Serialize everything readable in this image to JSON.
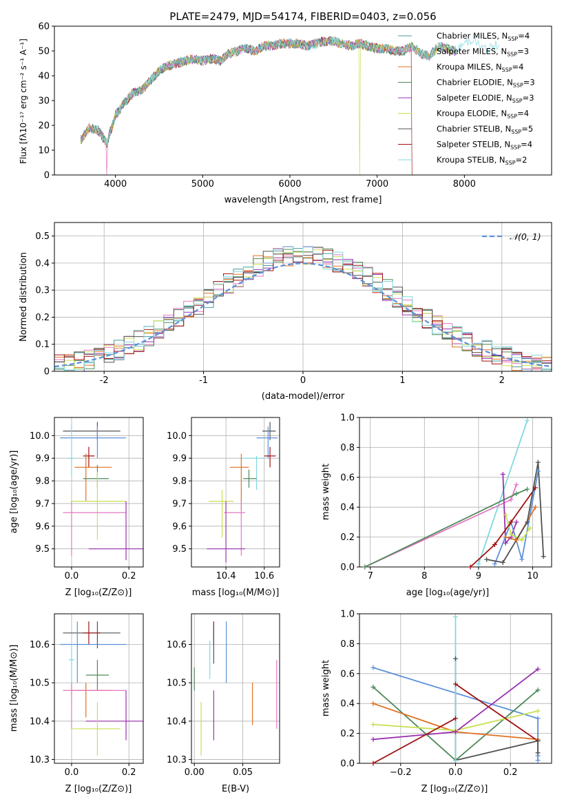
{
  "figure_title": "PLATE=2479, MJD=54174, FIBERID=0403, z=0.056",
  "chart_data": [
    {
      "id": "spectrum",
      "type": "line",
      "title": "PLATE=2479, MJD=54174, FIBERID=0403, z=0.056",
      "xlabel": "wavelength [Angstrom, rest frame]",
      "ylabel": "Flux [fλ10⁻¹⁷ erg cm⁻² s⁻¹ A⁻¹]",
      "xlim": [
        3300,
        9000
      ],
      "ylim": [
        0,
        60
      ],
      "xticks": [
        4000,
        5000,
        6000,
        7000,
        8000
      ],
      "yticks": [
        0,
        10,
        20,
        30,
        40,
        50,
        60
      ],
      "grid": false,
      "legend_position": "right",
      "x": [
        3600,
        3700,
        3800,
        3900,
        4000,
        4100,
        4200,
        4300,
        4400,
        4500,
        4600,
        4700,
        4800,
        4900,
        5000,
        5100,
        5200,
        5300,
        5400,
        5500,
        5600,
        5700,
        5800,
        5900,
        6000,
        6100,
        6200,
        6300,
        6400,
        6500,
        6600,
        6700,
        6800,
        6900,
        7000,
        7100,
        7200,
        7300,
        7400,
        7500,
        7600,
        7700,
        7800,
        7900,
        8000,
        8100,
        8200,
        8300,
        8400
      ],
      "flux": [
        14,
        19,
        18,
        13,
        24,
        29,
        33,
        34,
        38,
        42,
        44,
        45,
        46,
        47,
        46,
        47,
        46,
        49,
        50,
        51,
        50,
        52,
        52,
        53,
        53,
        53,
        52,
        53,
        54,
        54,
        53,
        52,
        53,
        52,
        51,
        51,
        50,
        50,
        52,
        49,
        48,
        52,
        51,
        50,
        53,
        55,
        51,
        51,
        53
      ],
      "series": [
        {
          "name": "Chabrier MILES, N",
          "sub": "SSP",
          "suffix": "=4",
          "color": "#4a9a9a"
        },
        {
          "name": "Salpeter MILES, N",
          "sub": "SSP",
          "suffix": "=3",
          "color": "#e377c2"
        },
        {
          "name": "Kroupa MILES, N",
          "sub": "SSP",
          "suffix": "=4",
          "color": "#e07020"
        },
        {
          "name": "Chabrier ELODIE, N",
          "sub": "SSP",
          "suffix": "=3",
          "color": "#4e8a5a"
        },
        {
          "name": "Salpeter ELODIE, N",
          "sub": "SSP",
          "suffix": "=3",
          "color": "#9a30b0"
        },
        {
          "name": "Kroupa ELODIE, N",
          "sub": "SSP",
          "suffix": "=4",
          "color": "#c8e050"
        },
        {
          "name": "Chabrier STELIB, N",
          "sub": "SSP",
          "suffix": "=5",
          "color": "#505050"
        },
        {
          "name": "Salpeter STELIB, N",
          "sub": "SSP",
          "suffix": "=4",
          "color": "#a01010"
        },
        {
          "name": "Kroupa STELIB, N",
          "sub": "SSP",
          "suffix": "=2",
          "color": "#80d8e0"
        }
      ]
    },
    {
      "id": "residuals",
      "type": "histogram",
      "xlabel": "(data-model)/error",
      "ylabel": "Normed distribution",
      "xlim": [
        -2.5,
        2.5
      ],
      "ylim": [
        0,
        0.55
      ],
      "xticks": [
        -2,
        -1,
        0,
        1,
        2
      ],
      "yticks": [
        0.0,
        0.1,
        0.2,
        0.3,
        0.4,
        0.5
      ],
      "grid": true,
      "legend_position": "top-right",
      "reference_label": "𝒩(0, 1)",
      "reference_color": "#5b8fd9",
      "bin_edges_range": [
        -2.5,
        2.5
      ],
      "n_bins": 50
    },
    {
      "id": "age_vs_Z",
      "type": "errorbar",
      "xlabel": "Z [log₁₀(Z/Z⊙)]",
      "ylabel": "age  [log₁₀(age/yr)]",
      "xlim": [
        -0.06,
        0.25
      ],
      "ylim": [
        9.42,
        10.08
      ],
      "xticks": [
        "0.0",
        "0.2"
      ],
      "yticks": [
        "9.5",
        "9.6",
        "9.7",
        "9.8",
        "9.9",
        "10.0"
      ],
      "points": [
        {
          "x": 0.09,
          "xlo": -0.03,
          "xhi": 0.17,
          "y": 10.02,
          "ylo": 9.98,
          "yhi": 10.06,
          "color": "#505050"
        },
        {
          "x": 0.09,
          "xlo": -0.04,
          "xhi": 0.19,
          "y": 9.99,
          "ylo": 9.9,
          "yhi": 10.04,
          "color": "#5b8fd9"
        },
        {
          "x": 0.06,
          "xlo": 0.04,
          "xhi": 0.08,
          "y": 9.91,
          "ylo": 9.86,
          "yhi": 9.95,
          "color": "#a01010"
        },
        {
          "x": 0.0,
          "xlo": -0.01,
          "xhi": 0.01,
          "y": 9.9,
          "ylo": 9.82,
          "yhi": 10.05,
          "color": "#80d8e0"
        },
        {
          "x": 0.05,
          "xlo": 0.01,
          "xhi": 0.14,
          "y": 9.86,
          "ylo": 9.71,
          "yhi": 9.92,
          "color": "#e07020"
        },
        {
          "x": 0.09,
          "xlo": 0.04,
          "xhi": 0.13,
          "y": 9.81,
          "ylo": 9.77,
          "yhi": 9.87,
          "color": "#4e8a5a"
        },
        {
          "x": 0.09,
          "xlo": 0.0,
          "xhi": 0.19,
          "y": 9.71,
          "ylo": 9.54,
          "yhi": 9.84,
          "color": "#c8e050"
        },
        {
          "x": 0.0,
          "xlo": -0.03,
          "xhi": 0.19,
          "y": 9.66,
          "ylo": 9.47,
          "yhi": 9.71,
          "color": "#e377c2"
        },
        {
          "x": 0.19,
          "xlo": 0.06,
          "xhi": 0.25,
          "y": 9.5,
          "ylo": 9.45,
          "yhi": 9.71,
          "color": "#9a30b0"
        }
      ]
    },
    {
      "id": "age_vs_mass",
      "type": "errorbar",
      "xlabel": "mass [log₁₀(M/M⊙)]",
      "ylabel": "",
      "xlim": [
        10.22,
        10.68
      ],
      "ylim": [
        9.42,
        10.08
      ],
      "xticks": [
        "10.4",
        "10.6"
      ],
      "yticks": [
        "9.5",
        "9.6",
        "9.7",
        "9.8",
        "9.9",
        "10.0"
      ],
      "points": [
        {
          "x": 10.63,
          "xlo": 10.59,
          "xhi": 10.66,
          "y": 10.02,
          "ylo": 9.98,
          "yhi": 10.06,
          "color": "#505050"
        },
        {
          "x": 10.62,
          "xlo": 10.56,
          "xhi": 10.67,
          "y": 9.99,
          "ylo": 9.9,
          "yhi": 10.04,
          "color": "#5b8fd9"
        },
        {
          "x": 10.63,
          "xlo": 10.6,
          "xhi": 10.66,
          "y": 9.91,
          "ylo": 9.86,
          "yhi": 9.95,
          "color": "#a01010"
        },
        {
          "x": 10.56,
          "xlo": 10.49,
          "xhi": 10.6,
          "y": 9.9,
          "ylo": 9.76,
          "yhi": 9.91,
          "color": "#80d8e0"
        },
        {
          "x": 10.48,
          "xlo": 10.42,
          "xhi": 10.52,
          "y": 9.86,
          "ylo": 9.67,
          "yhi": 9.92,
          "color": "#e07020"
        },
        {
          "x": 10.52,
          "xlo": 10.49,
          "xhi": 10.56,
          "y": 9.81,
          "ylo": 9.77,
          "yhi": 9.85,
          "color": "#4e8a5a"
        },
        {
          "x": 10.38,
          "xlo": 10.31,
          "xhi": 10.44,
          "y": 9.71,
          "ylo": 9.55,
          "yhi": 9.76,
          "color": "#c8e050"
        },
        {
          "x": 10.48,
          "xlo": 10.39,
          "xhi": 10.5,
          "y": 9.66,
          "ylo": 9.47,
          "yhi": 9.71,
          "color": "#e377c2"
        },
        {
          "x": 10.4,
          "xlo": 10.3,
          "xhi": 10.5,
          "y": 9.5,
          "ylo": 9.44,
          "yhi": 9.71,
          "color": "#9a30b0"
        }
      ]
    },
    {
      "id": "weight_vs_age",
      "type": "line",
      "xlabel": "age  [log₁₀(age/yr)]",
      "ylabel": "mass weight",
      "xlim": [
        6.8,
        10.35
      ],
      "ylim": [
        0,
        1.0
      ],
      "xticks": [
        "7",
        "8",
        "9",
        "10"
      ],
      "yticks": [
        "0.0",
        "0.2",
        "0.4",
        "0.6",
        "0.8",
        "1.0"
      ],
      "grid": true,
      "series": [
        {
          "color": "#80d8e0",
          "x": [
            9.0,
            9.9
          ],
          "y": [
            0.02,
            0.98
          ]
        },
        {
          "color": "#e377c2",
          "x": [
            6.9,
            9.6,
            9.7
          ],
          "y": [
            0.0,
            0.45,
            0.55
          ]
        },
        {
          "color": "#4e8a5a",
          "x": [
            6.9,
            9.7,
            9.9
          ],
          "y": [
            0.0,
            0.49,
            0.52
          ]
        },
        {
          "color": "#9a30b0",
          "x": [
            9.45,
            9.5,
            9.6,
            9.7
          ],
          "y": [
            0.62,
            0.16,
            0.2,
            0.3
          ]
        },
        {
          "color": "#5b8fd9",
          "x": [
            9.3,
            9.6,
            9.8,
            10.1
          ],
          "y": [
            0.02,
            0.3,
            0.05,
            0.64
          ]
        },
        {
          "color": "#e07020",
          "x": [
            9.5,
            9.7,
            10.05
          ],
          "y": [
            0.2,
            0.18,
            0.4
          ]
        },
        {
          "color": "#c8e050",
          "x": [
            9.5,
            9.6,
            9.8,
            9.95
          ],
          "y": [
            0.35,
            0.22,
            0.18,
            0.26
          ]
        },
        {
          "color": "#a01010",
          "x": [
            8.85,
            9.3,
            9.6,
            10.05
          ],
          "y": [
            0.0,
            0.15,
            0.3,
            0.53
          ]
        },
        {
          "color": "#505050",
          "x": [
            9.15,
            9.45,
            9.9,
            10.1,
            10.2
          ],
          "y": [
            0.05,
            0.03,
            0.3,
            0.7,
            0.07
          ]
        }
      ]
    },
    {
      "id": "mass_vs_Z",
      "type": "errorbar",
      "xlabel": "Z [log₁₀(Z/Z⊙)]",
      "ylabel": "mass [log₁₀(M/M⊙)]",
      "xlim": [
        -0.06,
        0.25
      ],
      "ylim": [
        10.29,
        10.68
      ],
      "xticks": [
        "0.0",
        "0.2"
      ],
      "yticks": [
        "10.3",
        "10.4",
        "10.5",
        "10.6"
      ],
      "points": [
        {
          "x": 0.09,
          "xlo": -0.03,
          "xhi": 0.17,
          "y": 10.63,
          "ylo": 10.59,
          "yhi": 10.66,
          "color": "#505050"
        },
        {
          "x": 0.06,
          "xlo": 0.04,
          "xhi": 0.1,
          "y": 10.63,
          "ylo": 10.6,
          "yhi": 10.66,
          "color": "#a01010"
        },
        {
          "x": 0.02,
          "xlo": -0.04,
          "xhi": 0.19,
          "y": 10.6,
          "ylo": 10.5,
          "yhi": 10.66,
          "color": "#5b8fd9"
        },
        {
          "x": 0.0,
          "xlo": -0.01,
          "xhi": 0.01,
          "y": 10.56,
          "ylo": 10.46,
          "yhi": 10.6,
          "color": "#80d8e0"
        },
        {
          "x": 0.09,
          "xlo": 0.05,
          "xhi": 0.13,
          "y": 10.52,
          "ylo": 10.48,
          "yhi": 10.56,
          "color": "#4e8a5a"
        },
        {
          "x": 0.05,
          "xlo": 0.0,
          "xhi": 0.14,
          "y": 10.48,
          "ylo": 10.41,
          "yhi": 10.5,
          "color": "#e07020"
        },
        {
          "x": 0.0,
          "xlo": -0.03,
          "xhi": 0.19,
          "y": 10.48,
          "ylo": 10.38,
          "yhi": 10.5,
          "color": "#e377c2"
        },
        {
          "x": 0.19,
          "xlo": 0.05,
          "xhi": 0.25,
          "y": 10.4,
          "ylo": 10.35,
          "yhi": 10.48,
          "color": "#9a30b0"
        },
        {
          "x": 0.09,
          "xlo": 0.0,
          "xhi": 0.17,
          "y": 10.38,
          "ylo": 10.31,
          "yhi": 10.45,
          "color": "#c8e050"
        }
      ]
    },
    {
      "id": "mass_vs_EBV",
      "type": "errorbar",
      "xlabel": "E(B-V)",
      "ylabel": "",
      "xlim": [
        -0.003,
        0.088
      ],
      "ylim": [
        10.29,
        10.68
      ],
      "xticks": [
        "0.00",
        "0.05"
      ],
      "yticks": [
        "10.3",
        "10.4",
        "10.5",
        "10.6"
      ],
      "points": [
        {
          "x": 0.0,
          "y": 10.5,
          "ylo": 10.48,
          "yhi": 10.54,
          "color": "#4e8a5a"
        },
        {
          "x": 0.007,
          "y": 10.38,
          "ylo": 10.31,
          "yhi": 10.45,
          "color": "#c8e050"
        },
        {
          "x": 0.016,
          "y": 10.56,
          "ylo": 10.51,
          "yhi": 10.61,
          "color": "#80d8e0"
        },
        {
          "x": 0.02,
          "y": 10.63,
          "ylo": 10.6,
          "yhi": 10.66,
          "color": "#a01010"
        },
        {
          "x": 0.02,
          "y": 10.42,
          "ylo": 10.35,
          "yhi": 10.48,
          "color": "#9a30b0"
        },
        {
          "x": 0.02,
          "y": 10.62,
          "ylo": 10.55,
          "yhi": 10.65,
          "color": "#505050"
        },
        {
          "x": 0.033,
          "y": 10.6,
          "ylo": 10.5,
          "yhi": 10.66,
          "color": "#5b8fd9"
        },
        {
          "x": 0.06,
          "y": 10.45,
          "ylo": 10.39,
          "yhi": 10.5,
          "color": "#e07020"
        },
        {
          "x": 0.085,
          "y": 10.45,
          "ylo": 10.38,
          "yhi": 10.56,
          "color": "#e377c2"
        }
      ]
    },
    {
      "id": "weight_vs_Z",
      "type": "line",
      "xlabel": "Z [log₁₀(Z/Z⊙)]",
      "ylabel": "mass weight",
      "xlim": [
        -0.35,
        0.35
      ],
      "ylim": [
        0,
        1.0
      ],
      "xticks": [
        "−0.2",
        "0.0",
        "0.2"
      ],
      "yticks": [
        "0.0",
        "0.2",
        "0.4",
        "0.6",
        "0.8",
        "1.0"
      ],
      "grid": true,
      "series": [
        {
          "color": "#5b8fd9",
          "x": [
            -0.3,
            0.3,
            0.3,
            0.3
          ],
          "y": [
            0.64,
            0.3,
            0.05,
            0.02
          ]
        },
        {
          "color": "#4e8a5a",
          "x": [
            -0.3,
            0.0,
            0.3
          ],
          "y": [
            0.51,
            0.02,
            0.49
          ]
        },
        {
          "color": "#e07020",
          "x": [
            -0.3,
            0.0,
            0.3
          ],
          "y": [
            0.4,
            0.21,
            0.16
          ]
        },
        {
          "color": "#c8e050",
          "x": [
            -0.3,
            0.0,
            0.3
          ],
          "y": [
            0.26,
            0.22,
            0.35
          ]
        },
        {
          "color": "#9a30b0",
          "x": [
            -0.3,
            0.0,
            0.3
          ],
          "y": [
            0.16,
            0.21,
            0.63
          ]
        },
        {
          "color": "#a01010",
          "x": [
            -0.3,
            0.0,
            0.0,
            0.3
          ],
          "y": [
            0.0,
            0.3,
            0.53,
            0.15
          ]
        },
        {
          "color": "#505050",
          "x": [
            0.0,
            0.0,
            0.3,
            0.3
          ],
          "y": [
            0.7,
            0.02,
            0.15,
            0.07
          ]
        },
        {
          "color": "#80d8e0",
          "x": [
            0.0,
            0.0
          ],
          "y": [
            0.98,
            0.02
          ]
        }
      ]
    }
  ]
}
